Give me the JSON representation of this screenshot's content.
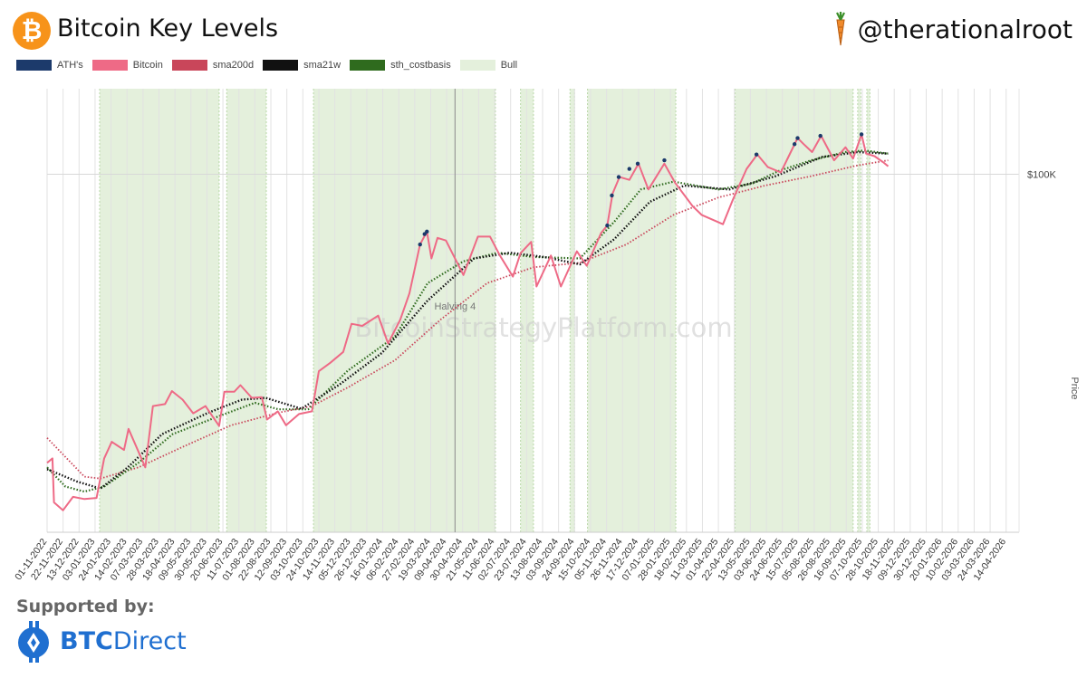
{
  "header": {
    "title": "Bitcoin Key Levels",
    "logo_glyph": "₿",
    "handle": "@therationalroot",
    "logo_icon": "bitcoin-icon",
    "handle_icon": "carrot-icon"
  },
  "footer": {
    "supported_label": "Supported by:",
    "sponsor_prefix": "BTC",
    "sponsor_suffix": "Direct",
    "sponsor_icon": "btcdirect-icon"
  },
  "colors": {
    "ath": "#1c3a6b",
    "bitcoin": "#ee6a86",
    "sma200d": "#c9465a",
    "sma21w": "#111111",
    "sth_costbasis": "#2f6b1e",
    "bull": "#e4f0dc",
    "brand_orange": "#f7931a",
    "sponsor_blue": "#1f6fd0"
  },
  "chart_data": {
    "type": "line",
    "title": "Bitcoin Key Levels",
    "ylabel": "Price",
    "y_tick_labels": [
      "$100K"
    ],
    "y_scale": "log",
    "ylim": [
      14000,
      160000
    ],
    "xlim": [
      "2022-11-01",
      "2026-05-01"
    ],
    "watermark": "BitcoinStrategyPlatform.com",
    "legend": [
      "ATH's",
      "Bitcoin",
      "sma200d",
      "sma21w",
      "sth_costbasis",
      "Bull"
    ],
    "legend_position": "top-left",
    "grid": true,
    "x_tick_labels": [
      "01-11-2022",
      "22-11-2022",
      "13-12-2022",
      "03-01-2023",
      "24-01-2023",
      "14-02-2023",
      "07-03-2023",
      "28-03-2023",
      "18-04-2023",
      "09-05-2023",
      "30-05-2023",
      "20-06-2023",
      "11-07-2023",
      "01-08-2023",
      "22-08-2023",
      "12-09-2023",
      "03-10-2023",
      "24-10-2023",
      "14-11-2023",
      "05-12-2023",
      "26-12-2023",
      "16-01-2024",
      "06-02-2024",
      "27-02-2024",
      "19-03-2024",
      "09-04-2024",
      "30-04-2024",
      "21-05-2024",
      "11-06-2024",
      "02-07-2024",
      "23-07-2024",
      "13-08-2024",
      "03-09-2024",
      "24-09-2024",
      "15-10-2024",
      "05-11-2024",
      "26-11-2024",
      "17-12-2024",
      "07-01-2025",
      "28-01-2025",
      "18-02-2025",
      "11-03-2025",
      "01-04-2025",
      "22-04-2025",
      "13-05-2025",
      "03-06-2025",
      "24-06-2025",
      "15-07-2025",
      "05-08-2025",
      "26-08-2025",
      "16-09-2025",
      "07-10-2025",
      "28-10-2025",
      "18-11-2025",
      "09-12-2025",
      "30-12-2025",
      "20-01-2026",
      "10-02-2026",
      "03-03-2026",
      "24-03-2026",
      "14-04-2026"
    ],
    "annotations": [
      {
        "label": "Halving 4",
        "date": "2024-04-20"
      }
    ],
    "bull_periods": [
      [
        "2023-01-09",
        "2023-06-15"
      ],
      [
        "2023-06-25",
        "2023-08-16"
      ],
      [
        "2023-10-17",
        "2024-06-12"
      ],
      [
        "2024-07-15",
        "2024-08-01"
      ],
      [
        "2024-09-18",
        "2024-09-24"
      ],
      [
        "2024-10-11",
        "2025-02-04"
      ],
      [
        "2025-04-23",
        "2025-09-25"
      ],
      [
        "2025-10-01",
        "2025-10-05"
      ],
      [
        "2025-10-13",
        "2025-10-17"
      ]
    ],
    "series": [
      {
        "name": "Bitcoin",
        "dates": [
          "2022-11-01",
          "2022-11-08",
          "2022-11-10",
          "2022-11-22",
          "2022-12-05",
          "2022-12-20",
          "2023-01-05",
          "2023-01-15",
          "2023-01-25",
          "2023-02-10",
          "2023-02-16",
          "2023-03-10",
          "2023-03-20",
          "2023-04-05",
          "2023-04-14",
          "2023-04-28",
          "2023-05-12",
          "2023-05-28",
          "2023-06-15",
          "2023-06-22",
          "2023-07-05",
          "2023-07-13",
          "2023-07-28",
          "2023-08-10",
          "2023-08-17",
          "2023-08-31",
          "2023-09-11",
          "2023-09-28",
          "2023-10-15",
          "2023-10-24",
          "2023-11-08",
          "2023-11-25",
          "2023-12-06",
          "2023-12-20",
          "2024-01-10",
          "2024-01-23",
          "2024-02-08",
          "2024-02-20",
          "2024-03-05",
          "2024-03-14",
          "2024-03-20",
          "2024-03-28",
          "2024-04-08",
          "2024-04-19",
          "2024-05-01",
          "2024-05-20",
          "2024-06-05",
          "2024-06-18",
          "2024-07-05",
          "2024-07-15",
          "2024-07-29",
          "2024-08-05",
          "2024-08-24",
          "2024-09-06",
          "2024-09-27",
          "2024-10-10",
          "2024-10-29",
          "2024-11-06",
          "2024-11-13",
          "2024-11-22",
          "2024-12-05",
          "2024-12-17",
          "2024-12-30",
          "2025-01-20",
          "2025-02-03",
          "2025-02-26",
          "2025-03-10",
          "2025-04-07",
          "2025-04-20",
          "2025-05-08",
          "2025-05-22",
          "2025-06-05",
          "2025-06-22",
          "2025-07-14",
          "2025-07-22",
          "2025-08-02",
          "2025-08-14",
          "2025-08-31",
          "2025-09-15",
          "2025-09-25",
          "2025-10-06",
          "2025-10-12",
          "2025-10-23",
          "2025-11-03",
          "2025-11-10"
        ],
        "values": [
          20500,
          21000,
          16500,
          15800,
          17000,
          16800,
          16900,
          21000,
          23000,
          22000,
          24700,
          20000,
          28000,
          28300,
          30400,
          29000,
          26900,
          28000,
          25100,
          30300,
          30300,
          31400,
          29300,
          29400,
          26000,
          27200,
          25200,
          26800,
          27200,
          33900,
          35500,
          37700,
          44000,
          43500,
          46000,
          39500,
          45000,
          52000,
          68000,
          73000,
          63000,
          70500,
          69500,
          63500,
          57500,
          71000,
          71000,
          64000,
          57000,
          64800,
          69000,
          54000,
          64000,
          54000,
          65500,
          60500,
          72500,
          75500,
          90000,
          98500,
          97000,
          106000,
          92000,
          106000,
          95500,
          84000,
          80000,
          76000,
          87000,
          103000,
          111500,
          104000,
          101000,
          122000,
          118000,
          113000,
          123500,
          108000,
          116000,
          109000,
          124500,
          112000,
          110500,
          107000,
          104500
        ]
      },
      {
        "name": "sma200d",
        "dates": [
          "2022-11-01",
          "2022-12-20",
          "2023-01-10",
          "2023-03-01",
          "2023-05-01",
          "2023-07-01",
          "2023-09-01",
          "2023-10-15",
          "2023-12-01",
          "2024-02-01",
          "2024-04-01",
          "2024-06-01",
          "2024-08-01",
          "2024-10-01",
          "2024-12-01",
          "2025-02-01",
          "2025-04-01",
          "2025-06-01",
          "2025-08-01",
          "2025-10-01",
          "2025-11-10"
        ],
        "values": [
          23500,
          19000,
          18800,
          20000,
          22500,
          25200,
          27000,
          28000,
          31000,
          36000,
          45000,
          55000,
          60000,
          61500,
          68000,
          80000,
          88000,
          94000,
          99000,
          105000,
          108000
        ]
      },
      {
        "name": "sma21w",
        "dates": [
          "2022-11-01",
          "2022-12-10",
          "2023-01-10",
          "2023-02-15",
          "2023-04-01",
          "2023-06-01",
          "2023-07-15",
          "2023-08-15",
          "2023-10-01",
          "2023-11-20",
          "2024-01-15",
          "2024-03-15",
          "2024-05-15",
          "2024-07-01",
          "2024-08-15",
          "2024-10-01",
          "2024-11-15",
          "2025-01-01",
          "2025-02-15",
          "2025-04-15",
          "2025-06-15",
          "2025-08-15",
          "2025-10-01",
          "2025-11-10"
        ],
        "values": [
          19800,
          18500,
          17800,
          20000,
          24000,
          27000,
          29000,
          29300,
          27600,
          31500,
          37500,
          50000,
          63000,
          65000,
          63500,
          61000,
          70000,
          86000,
          94000,
          92000,
          99000,
          110000,
          113000,
          112000
        ]
      },
      {
        "name": "sth_costbasis",
        "dates": [
          "2022-11-01",
          "2022-11-25",
          "2022-12-20",
          "2023-01-15",
          "2023-03-01",
          "2023-04-15",
          "2023-06-15",
          "2023-08-01",
          "2023-09-01",
          "2023-10-10",
          "2023-12-01",
          "2024-02-01",
          "2024-03-15",
          "2024-05-01",
          "2024-06-15",
          "2024-08-01",
          "2024-10-01",
          "2024-11-15",
          "2024-12-20",
          "2025-02-01",
          "2025-04-01",
          "2025-05-15",
          "2025-06-20",
          "2025-08-01",
          "2025-09-15",
          "2025-10-10",
          "2025-11-10"
        ],
        "values": [
          20000,
          18000,
          17500,
          18000,
          20500,
          24000,
          26500,
          28500,
          27500,
          27500,
          34000,
          41000,
          55000,
          62000,
          65000,
          63500,
          63000,
          77000,
          92000,
          96000,
          92000,
          95000,
          102000,
          108000,
          113000,
          114000,
          112000
        ]
      },
      {
        "name": "ATH's",
        "dates": [
          "2024-03-05",
          "2024-03-11",
          "2024-03-14",
          "2024-11-06",
          "2024-11-12",
          "2024-11-21",
          "2024-12-05",
          "2024-12-16",
          "2025-01-20",
          "2025-05-21",
          "2025-07-10",
          "2025-07-14",
          "2025-08-13",
          "2025-10-06"
        ],
        "values": [
          68000,
          72000,
          73000,
          75500,
          89000,
          98500,
          103000,
          106000,
          108000,
          111500,
          118000,
          122000,
          123500,
          124500
        ]
      }
    ]
  }
}
